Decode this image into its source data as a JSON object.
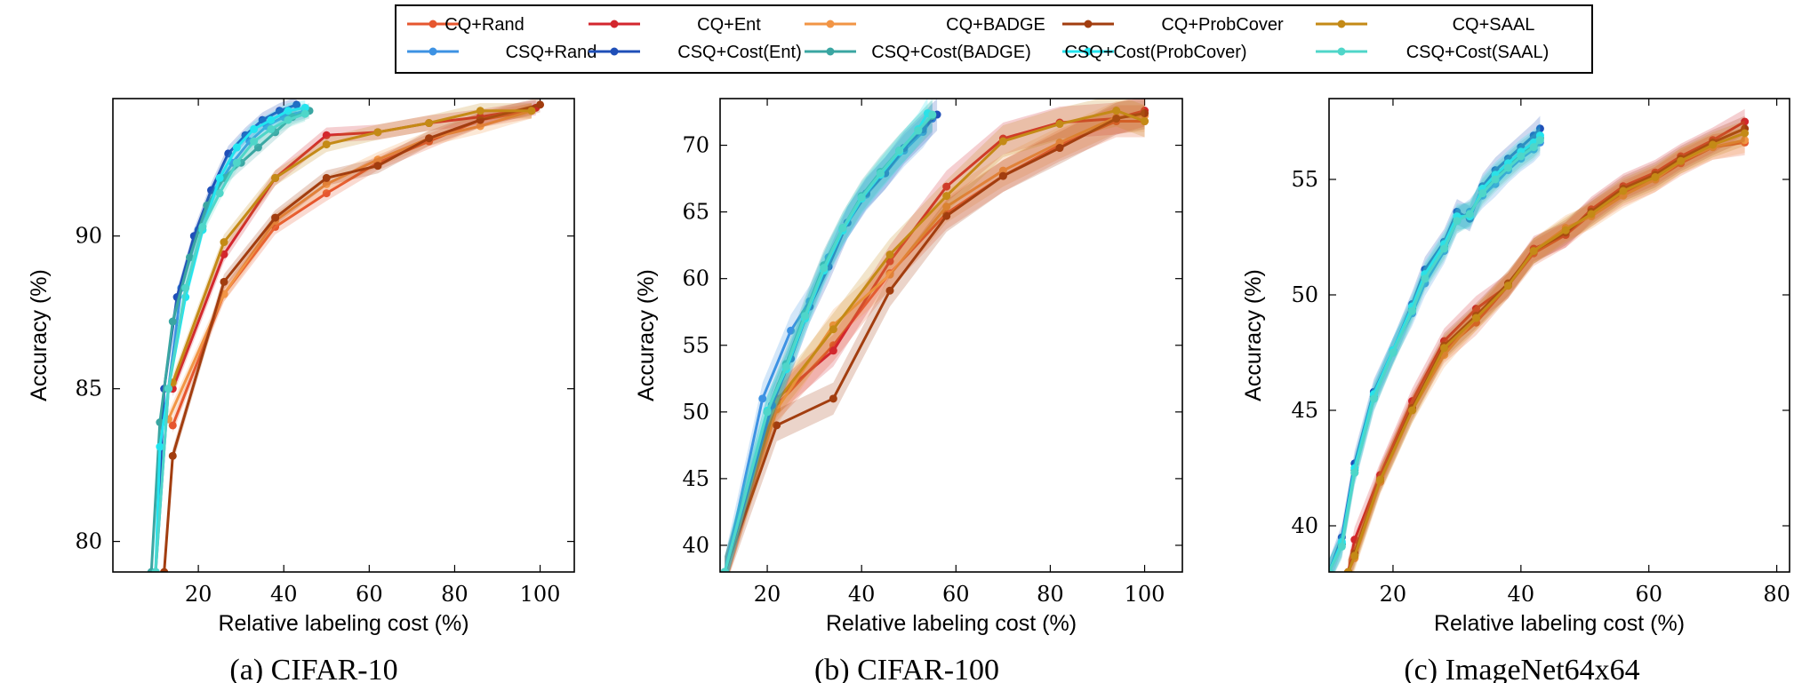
{
  "legend": {
    "entries": [
      {
        "label": "CQ+Rand",
        "color": "#e6562e"
      },
      {
        "label": "CQ+Ent",
        "color": "#d3262d"
      },
      {
        "label": "CQ+BADGE",
        "color": "#f29545"
      },
      {
        "label": "CQ+ProbCover",
        "color": "#a23d0f"
      },
      {
        "label": "CQ+SAAL",
        "color": "#c48a16"
      },
      {
        "label": "CSQ+Rand",
        "color": "#3d92e3"
      },
      {
        "label": "CSQ+Cost(Ent)",
        "color": "#1f4fb8"
      },
      {
        "label": "CSQ+Cost(BADGE)",
        "color": "#3aa6a2"
      },
      {
        "label": "CSQ+Cost(ProbCover)",
        "color": "#22e5f0"
      },
      {
        "label": "CSQ+Cost(SAAL)",
        "color": "#4fd6c9"
      }
    ]
  },
  "chart_data": [
    {
      "type": "line",
      "caption": "(a) CIFAR-10",
      "xlabel": "Relative labeling cost (%)",
      "ylabel": "Accuracy (%)",
      "xlim": [
        0,
        108
      ],
      "ylim": [
        79,
        94.5
      ],
      "xticks": [
        20,
        40,
        60,
        80,
        100
      ],
      "yticks": [
        80,
        85,
        90
      ],
      "series": [
        {
          "name": "CQ+Rand",
          "x": [
            14,
            26,
            38,
            50,
            62,
            74,
            86,
            98
          ],
          "y": [
            83.8,
            88.1,
            90.3,
            91.4,
            92.4,
            93.1,
            93.8,
            94.1
          ]
        },
        {
          "name": "CQ+Ent",
          "x": [
            14,
            26,
            38,
            50,
            62,
            74,
            86,
            99
          ],
          "y": [
            85.0,
            89.4,
            91.9,
            93.3,
            93.4,
            93.7,
            93.9,
            94.2
          ]
        },
        {
          "name": "CQ+BADGE",
          "x": [
            13,
            26,
            38,
            50,
            62,
            74,
            86,
            98
          ],
          "y": [
            84.0,
            88.1,
            90.5,
            91.7,
            92.5,
            93.2,
            93.6,
            94.1
          ]
        },
        {
          "name": "CQ+ProbCover",
          "x": [
            12,
            14,
            26,
            38,
            50,
            62,
            74,
            86,
            100
          ],
          "y": [
            79.0,
            82.8,
            88.5,
            90.6,
            91.9,
            92.3,
            93.2,
            93.8,
            94.3
          ]
        },
        {
          "name": "CQ+SAAL",
          "x": [
            14,
            26,
            38,
            50,
            62,
            74,
            86,
            98
          ],
          "y": [
            85.2,
            89.8,
            91.9,
            93.0,
            93.4,
            93.7,
            94.1,
            94.1
          ]
        },
        {
          "name": "CSQ+Rand",
          "x": [
            10,
            13,
            16,
            20,
            24,
            28,
            32,
            36,
            40,
            45
          ],
          "y": [
            79.0,
            85.0,
            88.3,
            90.2,
            91.5,
            92.4,
            93.1,
            93.6,
            93.9,
            94.1
          ]
        },
        {
          "name": "CSQ+Cost(Ent)",
          "x": [
            10,
            12,
            15,
            19,
            23,
            27,
            31,
            35,
            39,
            43
          ],
          "y": [
            79.0,
            85.0,
            88.0,
            90.0,
            91.5,
            92.7,
            93.3,
            93.8,
            94.1,
            94.3
          ]
        },
        {
          "name": "CSQ+Cost(BADGE)",
          "x": [
            9,
            11,
            14,
            18,
            22,
            26,
            30,
            34,
            38,
            42,
            46
          ],
          "y": [
            79.0,
            83.9,
            87.2,
            89.3,
            91.0,
            91.9,
            92.4,
            92.9,
            93.4,
            93.9,
            94.1
          ]
        },
        {
          "name": "CSQ+Cost(ProbCover)",
          "x": [
            10,
            11,
            13,
            17,
            21,
            25,
            29,
            33,
            37,
            41,
            45
          ],
          "y": [
            79.0,
            83.1,
            85.0,
            88.0,
            90.2,
            91.9,
            92.9,
            93.5,
            93.8,
            94.1,
            94.2
          ]
        },
        {
          "name": "CSQ+Cost(SAAL)",
          "x": [
            10,
            13,
            17,
            21,
            25,
            29,
            33,
            37,
            41,
            45
          ],
          "y": [
            79.0,
            85.0,
            88.3,
            90.3,
            91.4,
            92.4,
            93.1,
            93.5,
            93.8,
            94.0
          ]
        }
      ]
    },
    {
      "type": "line",
      "caption": "(b) CIFAR-100",
      "xlabel": "Relative labeling cost (%)",
      "ylabel": "Accuracy (%)",
      "xlim": [
        10,
        108
      ],
      "ylim": [
        38,
        73.5
      ],
      "xticks": [
        20,
        40,
        60,
        80,
        100
      ],
      "yticks": [
        40,
        45,
        50,
        55,
        60,
        65,
        70
      ],
      "series": [
        {
          "name": "CQ+Rand",
          "x": [
            11,
            22,
            34,
            46,
            58,
            70,
            82,
            94,
            100
          ],
          "y": [
            38,
            50.5,
            55.0,
            60.4,
            64.9,
            67.7,
            70.0,
            71.8,
            71.8
          ]
        },
        {
          "name": "CQ+Ent",
          "x": [
            11,
            22,
            34,
            46,
            58,
            70,
            82,
            94,
            100
          ],
          "y": [
            38,
            51.0,
            54.6,
            61.3,
            66.9,
            70.5,
            71.7,
            72.0,
            72.6
          ]
        },
        {
          "name": "CQ+BADGE",
          "x": [
            11,
            22,
            34,
            46,
            58,
            70,
            82,
            94,
            100
          ],
          "y": [
            38,
            50.2,
            56.5,
            60.3,
            65.4,
            68.1,
            70.2,
            72.1,
            72.2
          ]
        },
        {
          "name": "CQ+ProbCover",
          "x": [
            11,
            22,
            34,
            46,
            58,
            70,
            82,
            94,
            100
          ],
          "y": [
            38,
            49.0,
            51.0,
            59.1,
            64.7,
            67.7,
            69.8,
            72.0,
            72.4
          ]
        },
        {
          "name": "CQ+SAAL",
          "x": [
            11,
            22,
            34,
            46,
            58,
            70,
            82,
            94,
            100
          ],
          "y": [
            38,
            50.8,
            56.2,
            61.8,
            66.2,
            70.3,
            71.6,
            72.6,
            71.8
          ]
        },
        {
          "name": "CSQ+Rand",
          "x": [
            11,
            19,
            25,
            29,
            33,
            37,
            41,
            45,
            49,
            53,
            55
          ],
          "y": [
            38,
            51.0,
            56.1,
            58.3,
            61.6,
            64.2,
            66.3,
            67.9,
            69.6,
            71.0,
            72.0
          ]
        },
        {
          "name": "CSQ+Cost(Ent)",
          "x": [
            11,
            21,
            25,
            29,
            33,
            37,
            41,
            45,
            49,
            53,
            56
          ],
          "y": [
            38,
            50.5,
            54.0,
            57.9,
            60.9,
            64.2,
            66.4,
            67.9,
            69.8,
            71.2,
            72.3
          ]
        },
        {
          "name": "CSQ+Cost(BADGE)",
          "x": [
            11,
            20,
            24,
            28,
            32,
            36,
            40,
            44,
            48,
            52,
            55
          ],
          "y": [
            38,
            50.0,
            53.6,
            57.4,
            61.0,
            63.8,
            66.2,
            68.0,
            69.6,
            71.1,
            72.2
          ]
        },
        {
          "name": "CSQ+Cost(ProbCover)",
          "x": [
            11,
            20,
            24,
            28,
            32,
            36,
            40,
            44,
            48,
            52,
            54
          ],
          "y": [
            38,
            50.1,
            53.2,
            57.0,
            60.6,
            63.6,
            66.0,
            67.8,
            69.5,
            71.2,
            72.4
          ]
        },
        {
          "name": "CSQ+Cost(SAAL)",
          "x": [
            11,
            20,
            24,
            28,
            32,
            36,
            40,
            44,
            48,
            52,
            55
          ],
          "y": [
            38,
            50.0,
            53.4,
            57.2,
            60.8,
            63.8,
            66.1,
            67.9,
            69.6,
            71.1,
            72.3
          ]
        }
      ]
    },
    {
      "type": "line",
      "caption": "(c) ImageNet64x64",
      "xlabel": "Relative labeling cost (%)",
      "ylabel": "Accuracy (%)",
      "xlim": [
        10,
        82
      ],
      "ylim": [
        38,
        58.5
      ],
      "xticks": [
        20,
        40,
        60,
        80
      ],
      "yticks": [
        40,
        45,
        50,
        55
      ],
      "series": [
        {
          "name": "CQ+Rand",
          "x": [
            13,
            14,
            18,
            23,
            28,
            33,
            38,
            42,
            47,
            51,
            56,
            61,
            65,
            70,
            75
          ],
          "y": [
            38,
            38.9,
            42.1,
            45.2,
            47.6,
            48.8,
            50.4,
            51.8,
            52.6,
            53.5,
            54.4,
            55.0,
            55.7,
            56.4,
            56.6
          ]
        },
        {
          "name": "CQ+Ent",
          "x": [
            13,
            14,
            18,
            23,
            28,
            33,
            38,
            42,
            47,
            51,
            56,
            61,
            65,
            70,
            75
          ],
          "y": [
            38,
            39.4,
            42.2,
            45.4,
            48.0,
            49.4,
            50.4,
            52.0,
            52.6,
            53.7,
            54.7,
            55.3,
            56.0,
            56.7,
            57.5
          ]
        },
        {
          "name": "CQ+BADGE",
          "x": [
            13,
            14,
            18,
            23,
            28,
            33,
            38,
            42,
            47,
            51,
            56,
            61,
            65,
            70,
            75
          ],
          "y": [
            38,
            38.6,
            41.9,
            45.0,
            47.4,
            49.0,
            50.5,
            51.9,
            52.9,
            53.4,
            54.3,
            55.0,
            55.8,
            56.4,
            56.7
          ]
        },
        {
          "name": "CQ+ProbCover",
          "x": [
            13,
            14,
            18,
            23,
            28,
            33,
            38,
            42,
            47,
            51,
            56,
            61,
            65,
            70,
            75
          ],
          "y": [
            38,
            38.8,
            42.0,
            45.1,
            47.8,
            49.1,
            50.5,
            51.9,
            52.7,
            53.6,
            54.6,
            55.2,
            55.9,
            56.6,
            57.2
          ]
        },
        {
          "name": "CQ+SAAL",
          "x": [
            13,
            14,
            18,
            23,
            28,
            33,
            38,
            42,
            47,
            51,
            56,
            61,
            65,
            70,
            75
          ],
          "y": [
            38,
            38.7,
            42.0,
            45.0,
            47.7,
            49.0,
            50.4,
            51.9,
            52.8,
            53.5,
            54.5,
            55.1,
            55.8,
            56.5,
            57.0
          ]
        },
        {
          "name": "CSQ+Rand",
          "x": [
            10,
            12,
            14,
            17,
            20,
            23,
            25,
            28,
            30,
            32,
            34,
            36,
            38,
            40,
            42,
            43
          ],
          "y": [
            38,
            39.2,
            42.3,
            45.5,
            47.6,
            49.2,
            50.5,
            51.9,
            53.2,
            53.6,
            54.3,
            54.8,
            55.4,
            55.9,
            56.3,
            56.6
          ]
        },
        {
          "name": "CSQ+Cost(Ent)",
          "x": [
            10,
            12,
            14,
            17,
            20,
            23,
            25,
            28,
            30,
            32,
            34,
            36,
            38,
            40,
            42,
            43
          ],
          "y": [
            38,
            39.5,
            42.7,
            45.8,
            47.6,
            49.6,
            51.1,
            52.3,
            53.6,
            53.3,
            54.7,
            55.4,
            55.9,
            56.4,
            56.9,
            57.2
          ]
        },
        {
          "name": "CSQ+Cost(BADGE)",
          "x": [
            10,
            12,
            14,
            17,
            20,
            23,
            25,
            28,
            30,
            32,
            34,
            36,
            38,
            40,
            42,
            43
          ],
          "y": [
            38,
            39.2,
            42.4,
            45.6,
            47.5,
            49.4,
            50.8,
            52.1,
            53.3,
            53.5,
            54.5,
            55.1,
            55.6,
            56.1,
            56.5,
            56.8
          ]
        },
        {
          "name": "CSQ+Cost(ProbCover)",
          "x": [
            10,
            12,
            14,
            17,
            20,
            23,
            25,
            28,
            30,
            32,
            34,
            36,
            38,
            40,
            42,
            43
          ],
          "y": [
            38,
            39.3,
            42.5,
            45.7,
            47.6,
            49.5,
            50.9,
            52.2,
            53.4,
            53.4,
            54.6,
            55.2,
            55.7,
            56.2,
            56.6,
            56.9
          ]
        },
        {
          "name": "CSQ+Cost(SAAL)",
          "x": [
            10,
            12,
            14,
            17,
            20,
            23,
            25,
            28,
            30,
            32,
            34,
            36,
            38,
            40,
            42,
            43
          ],
          "y": [
            38,
            39.1,
            42.3,
            45.5,
            47.5,
            49.3,
            50.7,
            52.0,
            53.2,
            53.5,
            54.4,
            55.0,
            55.5,
            56.0,
            56.4,
            56.7
          ]
        }
      ]
    }
  ]
}
